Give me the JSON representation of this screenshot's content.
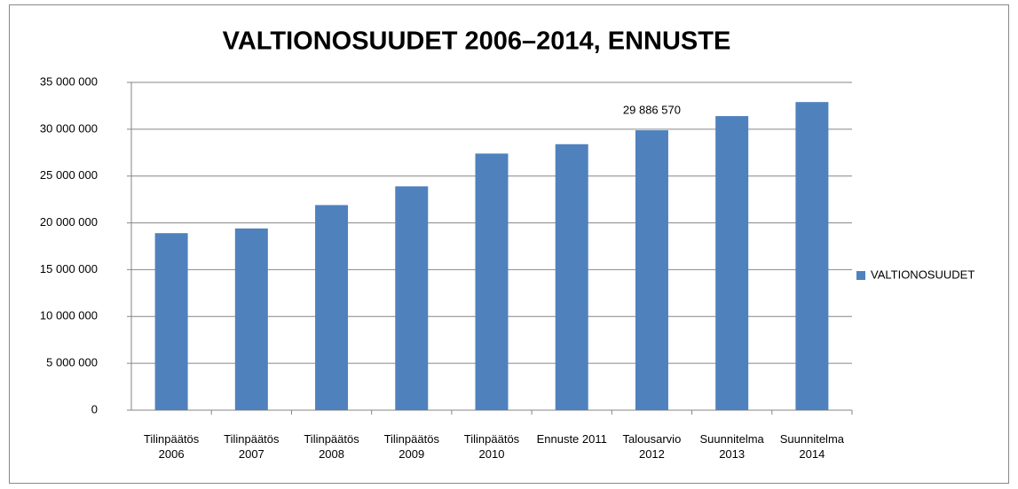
{
  "chart_data": {
    "type": "bar",
    "title": "VALTIONOSUUDET 2006–2014, ENNUSTE",
    "categories": [
      "Tilinpäätös 2006",
      "Tilinpäätös 2007",
      "Tilinpäätös 2008",
      "Tilinpäätös 2009",
      "Tilinpäätös 2010",
      "Ennuste 2011",
      "Talousarvio 2012",
      "Suunnitelma 2013",
      "Suunnitelma 2014"
    ],
    "series": [
      {
        "name": "VALTIONOSUUDET",
        "color": "#4f81bd",
        "values": [
          18900000,
          19400000,
          21900000,
          23900000,
          27400000,
          28400000,
          29886570,
          31400000,
          32900000
        ],
        "value_labels": [
          null,
          null,
          null,
          null,
          null,
          null,
          "29 886 570",
          null,
          null
        ]
      }
    ],
    "ylim": [
      0,
      35000000
    ],
    "yticks": [
      {
        "value": 0,
        "label": "0"
      },
      {
        "value": 5000000,
        "label": "5 000 000"
      },
      {
        "value": 10000000,
        "label": "10 000 000"
      },
      {
        "value": 15000000,
        "label": "15 000 000"
      },
      {
        "value": 20000000,
        "label": "20 000 000"
      },
      {
        "value": 25000000,
        "label": "25 000 000"
      },
      {
        "value": 30000000,
        "label": "30 000 000"
      },
      {
        "value": 35000000,
        "label": "35 000 000"
      }
    ],
    "grid": true,
    "legend": "right"
  }
}
